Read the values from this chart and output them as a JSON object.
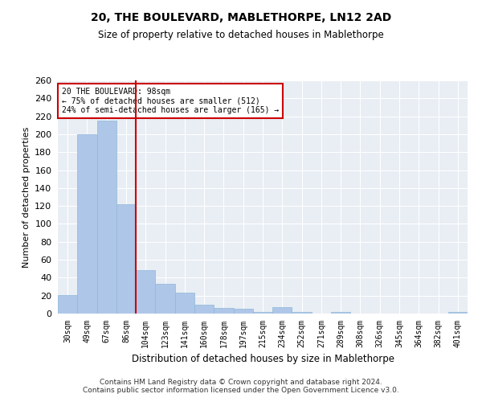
{
  "title": "20, THE BOULEVARD, MABLETHORPE, LN12 2AD",
  "subtitle": "Size of property relative to detached houses in Mablethorpe",
  "xlabel": "Distribution of detached houses by size in Mablethorpe",
  "ylabel": "Number of detached properties",
  "categories": [
    "30sqm",
    "49sqm",
    "67sqm",
    "86sqm",
    "104sqm",
    "123sqm",
    "141sqm",
    "160sqm",
    "178sqm",
    "197sqm",
    "215sqm",
    "234sqm",
    "252sqm",
    "271sqm",
    "289sqm",
    "308sqm",
    "326sqm",
    "345sqm",
    "364sqm",
    "382sqm",
    "401sqm"
  ],
  "values": [
    21,
    200,
    215,
    122,
    48,
    33,
    23,
    10,
    6,
    5,
    2,
    7,
    2,
    0,
    2,
    0,
    0,
    0,
    0,
    0,
    2
  ],
  "bar_color": "#aec6e8",
  "bar_edge_color": "#8fb8d8",
  "vline_x": 3.5,
  "vline_color": "#cc0000",
  "annotation_text": "20 THE BOULEVARD: 98sqm\n← 75% of detached houses are smaller (512)\n24% of semi-detached houses are larger (165) →",
  "annotation_box_color": "#ffffff",
  "annotation_box_edge": "#cc0000",
  "ylim": [
    0,
    260
  ],
  "yticks": [
    0,
    20,
    40,
    60,
    80,
    100,
    120,
    140,
    160,
    180,
    200,
    220,
    240,
    260
  ],
  "bg_color": "#e8eef4",
  "grid_color": "#ffffff",
  "footer1": "Contains HM Land Registry data © Crown copyright and database right 2024.",
  "footer2": "Contains public sector information licensed under the Open Government Licence v3.0."
}
